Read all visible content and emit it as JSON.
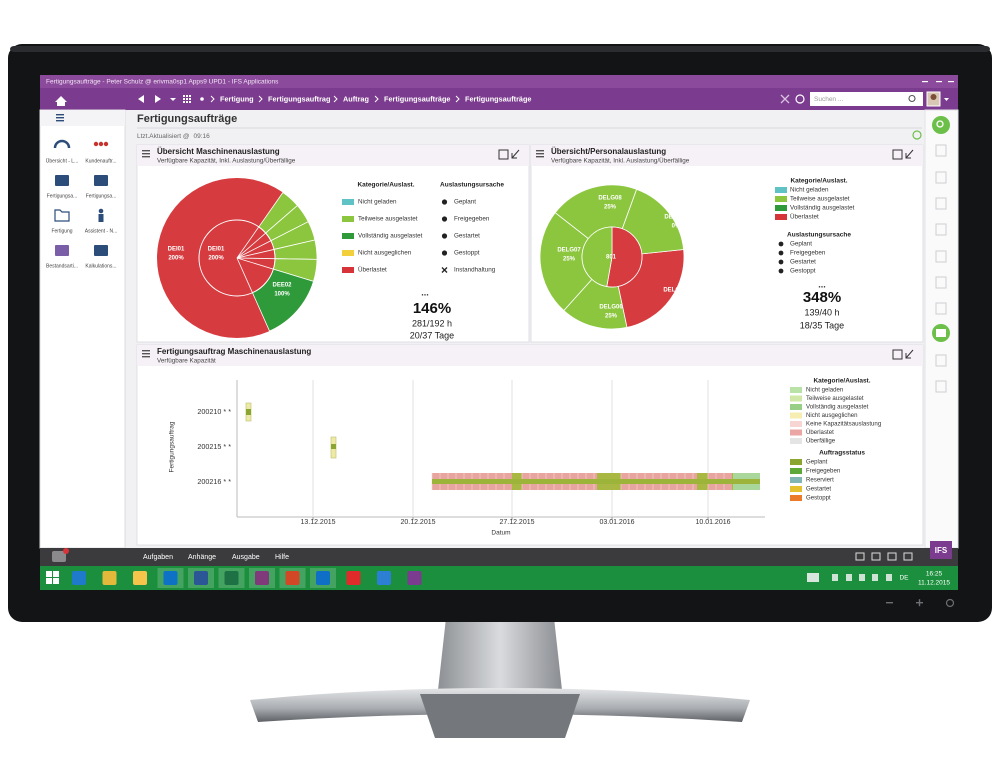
{
  "window_title": "Fertigungsaufträge - Peter Schulz @ erivma0sp1 Apps9 UPD1 - IFS Applications",
  "nav": {
    "breadcrumb": [
      "Fertigung",
      "Fertigungsauftrag",
      "Auftrag",
      "Fertigungsaufträge",
      "Fertigungsaufträge"
    ],
    "search": "Suchen ..."
  },
  "sidebar": {
    "items": [
      "Übersicht - L...",
      "Kundenauftr...",
      "Fertigungsa...",
      "Fertigungsa...",
      "Fertigung",
      "Assistent - N...",
      "Bestandsarti...",
      "Kalkulations..."
    ]
  },
  "page": {
    "title": "Fertigungsaufträge",
    "updated": "Ltzt.Aktualisiert @",
    "time": "09:16"
  },
  "machine": {
    "title": "Übersicht Maschinenauslastung",
    "subtitle": "Verfügbare Kapazität, Inkl. Auslastung/Überfällige",
    "segments": [
      {
        "name": "DEI01",
        "load": "200%"
      },
      {
        "name": "DEI01",
        "load": "200%"
      },
      {
        "name": "DEE02",
        "load": "100%"
      }
    ],
    "category_title": "Kategorie/Auslast.",
    "categories": [
      "Nicht geladen",
      "Teilweise ausgelastet",
      "Vollständig ausgelastet",
      "Nicht ausgeglichen",
      "Überlastet"
    ],
    "cause_title": "Auslastungsursache",
    "causes": [
      "Geplant",
      "Freigegeben",
      "Gestartet",
      "Gestoppt",
      "Instandhaltung"
    ],
    "more": "...",
    "load": "146%",
    "hours": "281/192 h",
    "days": "20/37 Tage"
  },
  "staff": {
    "title": "Übersicht/Personalauslastung",
    "subtitle": "Verfügbare Kapazität, Inkl. Auslastung/Überfällige",
    "segments": [
      {
        "name": "DELG08",
        "load": "25%"
      },
      {
        "name": "DELG09",
        "load": "0%"
      },
      {
        "name": "DELG01"
      },
      {
        "name": "DELG06",
        "load": "25%"
      },
      {
        "name": "DELG07",
        "load": "25%"
      },
      {
        "name": "801"
      }
    ],
    "category_title": "Kategorie/Auslast.",
    "categories": [
      "Nicht geladen",
      "Teilweise ausgelastet",
      "Vollständig ausgelastet",
      "Überlastet"
    ],
    "cause_title": "Auslastungsursache",
    "causes": [
      "Geplant",
      "Freigegeben",
      "Gestartet",
      "Gestoppt"
    ],
    "more": "...",
    "load": "348%",
    "hours": "139/40 h",
    "days": "18/35 Tage"
  },
  "gantt": {
    "title": "Fertigungsauftrag Maschinenauslastung",
    "subtitle": "Verfügbare Kapazität",
    "y_axis_label": "Fertigungsauftrag",
    "orders": [
      "200210 * *",
      "200215 * *",
      "200216 * *"
    ],
    "dates": [
      "13.12.2015",
      "20.12.2015",
      "27.12.2015",
      "03.01.2016",
      "10.01.2016"
    ],
    "x_axis_label": "Datum",
    "category_title": "Kategorie/Auslast.",
    "categories": [
      "Nicht geladen",
      "Teilweise ausgelastet",
      "Vollständig ausgelastet",
      "Nicht ausgeglichen",
      "Keine Kapazitätsauslastung",
      "Überlastet",
      "Überfällige"
    ],
    "status_title": "Auftragsstatus",
    "statuses": [
      "Geplant",
      "Freigegeben",
      "Reserviert",
      "Gestartet",
      "Gestoppt"
    ]
  },
  "menu": [
    "Aufgaben",
    "Anhänge",
    "Ausgabe",
    "Hilfe"
  ],
  "taskbar": {
    "language": "DE",
    "time": "16:25",
    "date": "11.12.2015"
  },
  "logo": "IFS"
}
